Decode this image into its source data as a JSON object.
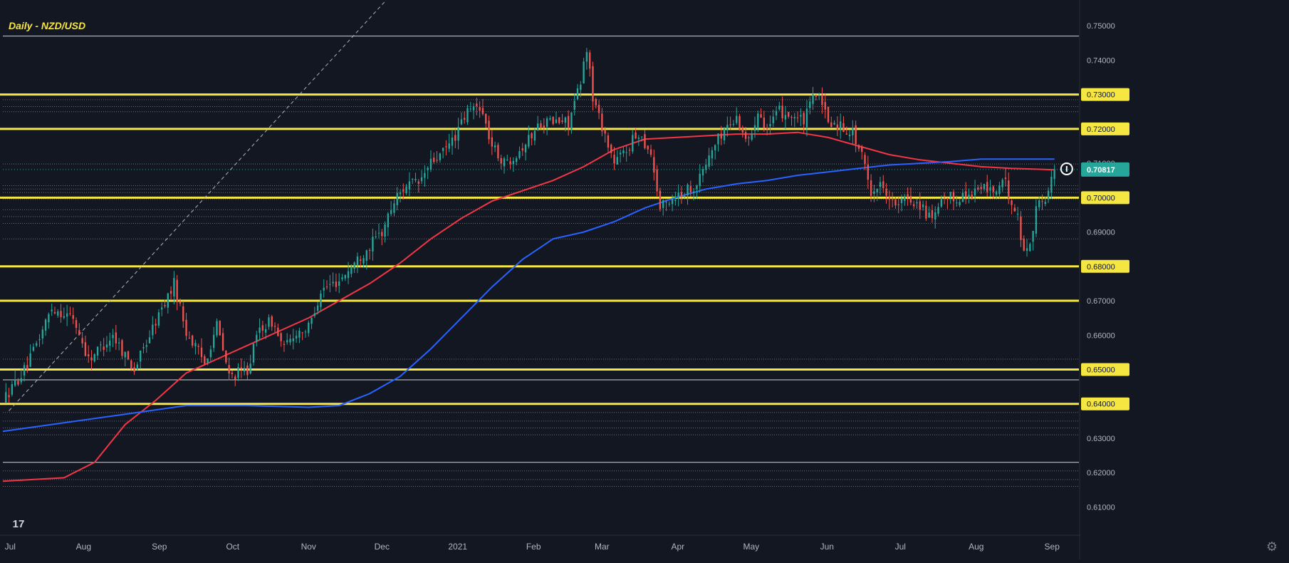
{
  "chart_data": {
    "type": "candlestick",
    "title": "Daily - NZD/USD",
    "ylim": [
      0.602,
      0.7575
    ],
    "y_ticks": [
      "0.61000",
      "0.62000",
      "0.63000",
      "0.64000",
      "0.65000",
      "0.66000",
      "0.67000",
      "0.68000",
      "0.69000",
      "0.70000",
      "0.71000",
      "0.72000",
      "0.73000",
      "0.74000",
      "0.75000"
    ],
    "x_ticks": [
      "Jul",
      "Aug",
      "Sep",
      "Oct",
      "Nov",
      "Dec",
      "2021",
      "Feb",
      "Mar",
      "Apr",
      "May",
      "Jun",
      "Jul",
      "Aug",
      "Sep"
    ],
    "current_price": {
      "label": "0.70817",
      "value": 0.70817,
      "color": "#26a69a"
    },
    "key_levels": [
      0.73,
      0.72,
      0.7,
      0.68,
      0.67,
      0.65,
      0.64
    ],
    "highlighted_price_labels": [
      "0.73000",
      "0.72000",
      "0.70000",
      "0.68000",
      "0.65000",
      "0.64000"
    ],
    "thin_white_lines": [
      0.747,
      0.647,
      0.623
    ],
    "price_path": [
      [
        0,
        0.641
      ],
      [
        8,
        0.651
      ],
      [
        16,
        0.668
      ],
      [
        23,
        0.665
      ],
      [
        28,
        0.653
      ],
      [
        36,
        0.66
      ],
      [
        43,
        0.65
      ],
      [
        50,
        0.664
      ],
      [
        56,
        0.675
      ],
      [
        60,
        0.661
      ],
      [
        66,
        0.652
      ],
      [
        70,
        0.663
      ],
      [
        74,
        0.648
      ],
      [
        80,
        0.65
      ],
      [
        84,
        0.662
      ],
      [
        88,
        0.664
      ],
      [
        92,
        0.656
      ],
      [
        96,
        0.661
      ],
      [
        100,
        0.662
      ],
      [
        104,
        0.673
      ],
      [
        110,
        0.676
      ],
      [
        118,
        0.684
      ],
      [
        124,
        0.69
      ],
      [
        128,
        0.699
      ],
      [
        132,
        0.704
      ],
      [
        136,
        0.704
      ],
      [
        140,
        0.71
      ],
      [
        144,
        0.713
      ],
      [
        148,
        0.718
      ],
      [
        152,
        0.725
      ],
      [
        156,
        0.727
      ],
      [
        160,
        0.715
      ],
      [
        164,
        0.71
      ],
      [
        168,
        0.713
      ],
      [
        172,
        0.717
      ],
      [
        176,
        0.722
      ],
      [
        180,
        0.722
      ],
      [
        185,
        0.722
      ],
      [
        189,
        0.733
      ],
      [
        191,
        0.744
      ],
      [
        193,
        0.729
      ],
      [
        196,
        0.721
      ],
      [
        200,
        0.71
      ],
      [
        204,
        0.714
      ],
      [
        208,
        0.719
      ],
      [
        212,
        0.713
      ],
      [
        215,
        0.697
      ],
      [
        219,
        0.7
      ],
      [
        223,
        0.702
      ],
      [
        227,
        0.704
      ],
      [
        232,
        0.714
      ],
      [
        236,
        0.72
      ],
      [
        240,
        0.723
      ],
      [
        244,
        0.716
      ],
      [
        247,
        0.726
      ],
      [
        250,
        0.72
      ],
      [
        254,
        0.725
      ],
      [
        258,
        0.724
      ],
      [
        262,
        0.722
      ],
      [
        266,
        0.731
      ],
      [
        270,
        0.722
      ],
      [
        274,
        0.721
      ],
      [
        278,
        0.719
      ],
      [
        281,
        0.712
      ],
      [
        284,
        0.702
      ],
      [
        288,
        0.704
      ],
      [
        292,
        0.697
      ],
      [
        296,
        0.7
      ],
      [
        300,
        0.698
      ],
      [
        304,
        0.693
      ],
      [
        308,
        0.7
      ],
      [
        312,
        0.7
      ],
      [
        316,
        0.701
      ],
      [
        320,
        0.703
      ],
      [
        324,
        0.702
      ],
      [
        328,
        0.704
      ],
      [
        332,
        0.694
      ],
      [
        334,
        0.684
      ],
      [
        336,
        0.687
      ],
      [
        338,
        0.697
      ],
      [
        341,
        0.7
      ],
      [
        343,
        0.705
      ],
      [
        344,
        0.708
      ]
    ],
    "sma_red": [
      [
        0,
        0.6175
      ],
      [
        20,
        0.6185
      ],
      [
        30,
        0.623
      ],
      [
        40,
        0.634
      ],
      [
        50,
        0.641
      ],
      [
        60,
        0.649
      ],
      [
        70,
        0.653
      ],
      [
        80,
        0.657
      ],
      [
        90,
        0.661
      ],
      [
        100,
        0.665
      ],
      [
        110,
        0.67
      ],
      [
        120,
        0.675
      ],
      [
        130,
        0.681
      ],
      [
        140,
        0.688
      ],
      [
        150,
        0.694
      ],
      [
        160,
        0.699
      ],
      [
        170,
        0.702
      ],
      [
        180,
        0.705
      ],
      [
        190,
        0.709
      ],
      [
        200,
        0.714
      ],
      [
        210,
        0.717
      ],
      [
        220,
        0.7175
      ],
      [
        230,
        0.718
      ],
      [
        240,
        0.7185
      ],
      [
        250,
        0.7185
      ],
      [
        260,
        0.719
      ],
      [
        270,
        0.7175
      ],
      [
        280,
        0.715
      ],
      [
        290,
        0.7125
      ],
      [
        300,
        0.711
      ],
      [
        310,
        0.71
      ],
      [
        320,
        0.709
      ],
      [
        330,
        0.7085
      ],
      [
        344,
        0.7081
      ]
    ],
    "sma_blue": [
      [
        0,
        0.632
      ],
      [
        20,
        0.6345
      ],
      [
        40,
        0.637
      ],
      [
        60,
        0.6395
      ],
      [
        80,
        0.6395
      ],
      [
        100,
        0.639
      ],
      [
        110,
        0.6395
      ],
      [
        120,
        0.643
      ],
      [
        130,
        0.648
      ],
      [
        140,
        0.656
      ],
      [
        150,
        0.665
      ],
      [
        160,
        0.674
      ],
      [
        170,
        0.682
      ],
      [
        180,
        0.688
      ],
      [
        190,
        0.69
      ],
      [
        200,
        0.693
      ],
      [
        210,
        0.697
      ],
      [
        220,
        0.7
      ],
      [
        230,
        0.7025
      ],
      [
        240,
        0.704
      ],
      [
        250,
        0.705
      ],
      [
        260,
        0.7065
      ],
      [
        270,
        0.7075
      ],
      [
        280,
        0.7085
      ],
      [
        290,
        0.7095
      ],
      [
        300,
        0.71
      ],
      [
        310,
        0.7105
      ],
      [
        320,
        0.7112
      ],
      [
        330,
        0.7112
      ],
      [
        344,
        0.7112
      ]
    ],
    "colors": {
      "background": "#131722",
      "up": "#26a69a",
      "down": "#ef5350",
      "level_line": "#f5e642",
      "sma_red": "#f23645",
      "sma_blue": "#2962ff",
      "axis_text": "#b2b5be"
    }
  },
  "branding": {
    "logo_text": "17"
  },
  "icons": {
    "settings": "gear-icon"
  }
}
